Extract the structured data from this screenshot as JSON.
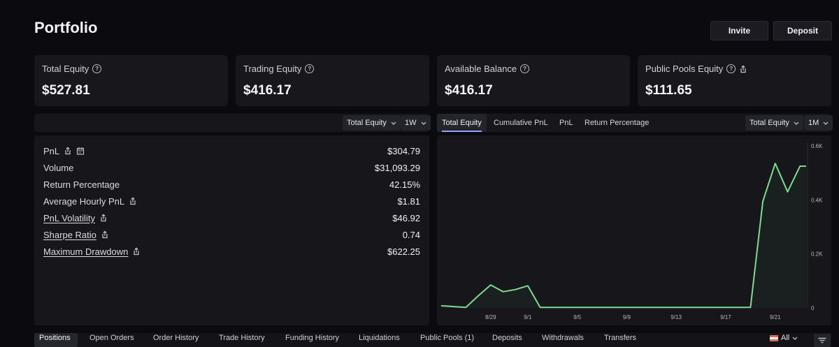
{
  "header": {
    "title": "Portfolio",
    "invite_label": "Invite",
    "deposit_label": "Deposit"
  },
  "cards": [
    {
      "label": "Total Equity",
      "value": "$527.81"
    },
    {
      "label": "Trading Equity",
      "value": "$416.17"
    },
    {
      "label": "Available Balance",
      "value": "$416.17"
    },
    {
      "label": "Public Pools Equity",
      "value": "$111.65"
    }
  ],
  "metrics_panel": {
    "metric_select": "Total Equity",
    "range_select": "1W",
    "rows": [
      {
        "label": "PnL",
        "value": "$304.79"
      },
      {
        "label": "Volume",
        "value": "$31,093.29"
      },
      {
        "label": "Return Percentage",
        "value": "42.15%"
      },
      {
        "label": "Average Hourly PnL",
        "value": "$1.81"
      },
      {
        "label": "PnL Volatility",
        "value": "$46.92"
      },
      {
        "label": "Sharpe Ratio",
        "value": "0.74"
      },
      {
        "label": "Maximum Drawdown",
        "value": "$622.25"
      }
    ]
  },
  "chart_panel": {
    "tabs": [
      "Total Equity",
      "Cumulative PnL",
      "PnL",
      "Return Percentage"
    ],
    "active_tab": "Total Equity",
    "metric_select": "Total Equity",
    "range_select": "1M"
  },
  "chart_data": {
    "type": "area",
    "x_tick_labels": [
      "8/29",
      "9/1",
      "9/5",
      "9/9",
      "9/13",
      "9/17",
      "9/21"
    ],
    "y_tick_labels": [
      "0.6K",
      "0.4K",
      "0.2K",
      "0"
    ],
    "ylim": [
      0,
      600
    ],
    "line_color": "#7ddc8f",
    "series": [
      {
        "values": [
          {
            "x": "8/25",
            "y": 8
          },
          {
            "x": "8/26",
            "y": 5
          },
          {
            "x": "8/27",
            "y": 2
          },
          {
            "x": "8/28",
            "y": 45
          },
          {
            "x": "8/29",
            "y": 85
          },
          {
            "x": "8/30",
            "y": 60
          },
          {
            "x": "8/31",
            "y": 68
          },
          {
            "x": "9/1",
            "y": 82
          },
          {
            "x": "9/2",
            "y": 2
          },
          {
            "x": "9/19",
            "y": 2
          },
          {
            "x": "9/20",
            "y": 395
          },
          {
            "x": "9/21",
            "y": 535
          },
          {
            "x": "9/22",
            "y": 430
          },
          {
            "x": "9/23",
            "y": 525
          },
          {
            "x": "9/23.5",
            "y": 525
          }
        ]
      }
    ]
  },
  "bottom_tabs": [
    "Positions",
    "Open Orders",
    "Order History",
    "Trade History",
    "Funding History",
    "Liquidations",
    "Public Pools (1)",
    "Deposits",
    "Withdrawals",
    "Transfers"
  ],
  "bottom_active": "Positions",
  "bottom_filter": "All"
}
